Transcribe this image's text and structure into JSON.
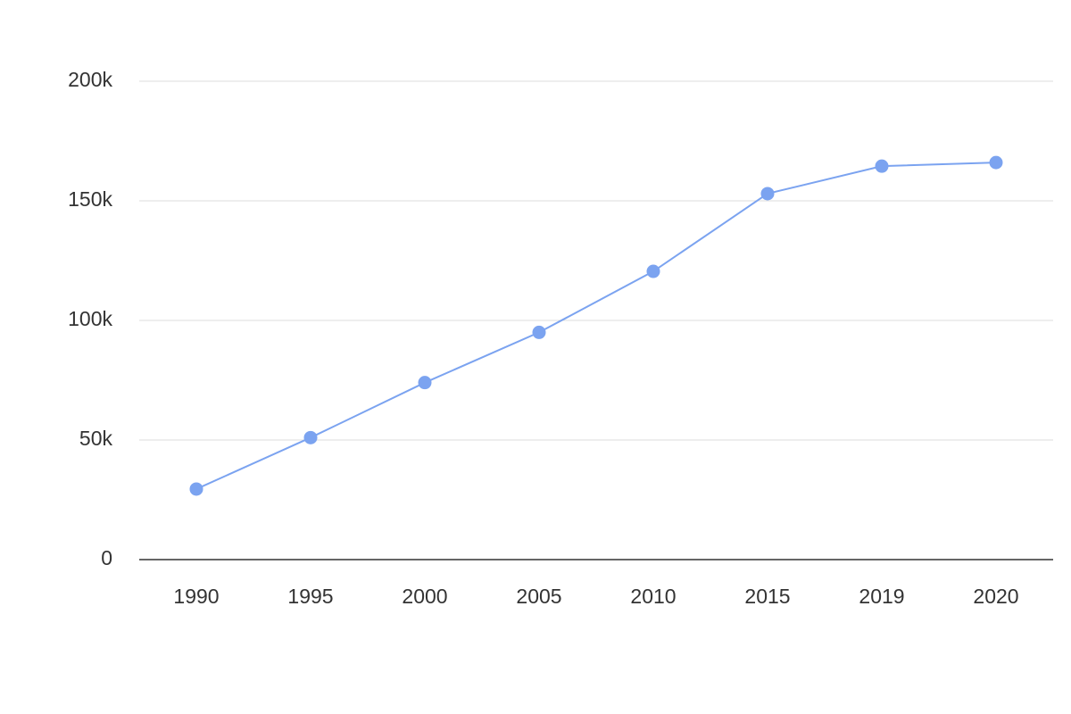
{
  "chart_data": {
    "type": "line",
    "categories": [
      "1990",
      "1995",
      "2000",
      "2005",
      "2010",
      "2015",
      "2019",
      "2020"
    ],
    "values": [
      29500,
      51000,
      74000,
      95000,
      120500,
      153000,
      164500,
      166000
    ],
    "color": "#7ba3f0",
    "ylim": [
      0,
      200000
    ],
    "yticks": [
      0,
      {
        "value": 50000,
        "label": "50k"
      },
      {
        "value": 100000,
        "label": "100k"
      },
      {
        "value": 150000,
        "label": "150k"
      },
      {
        "value": 200000,
        "label": "200k"
      }
    ],
    "grid": true
  }
}
